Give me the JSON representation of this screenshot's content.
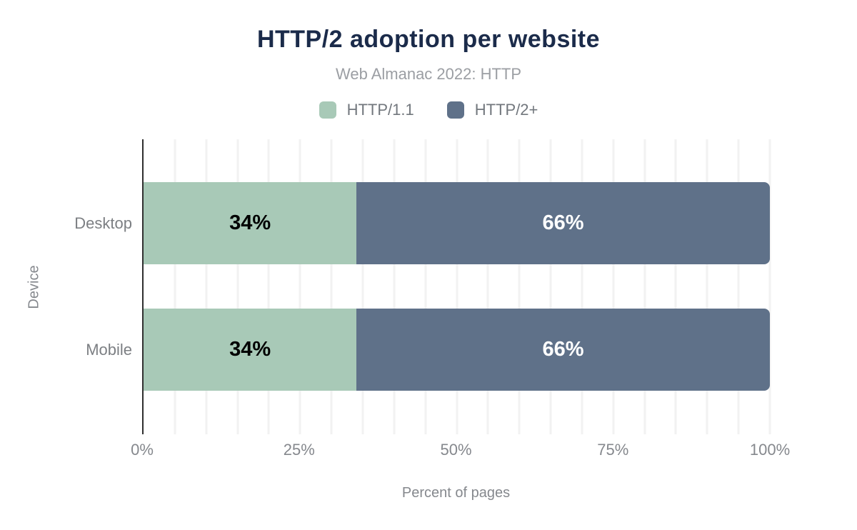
{
  "chart_data": {
    "type": "bar",
    "variant": "horizontal-stacked",
    "title": "HTTP/2 adoption per website",
    "subtitle": "Web Almanac 2022: HTTP",
    "categories": [
      "Desktop",
      "Mobile"
    ],
    "series": [
      {
        "name": "HTTP/1.1",
        "color": "#a8c9b7",
        "label_color": "#000000",
        "values": [
          34,
          34
        ],
        "labels": [
          "34%",
          "34%"
        ]
      },
      {
        "name": "HTTP/2+",
        "color": "#5f7189",
        "label_color": "#ffffff",
        "values": [
          66,
          66
        ],
        "labels": [
          "66%",
          "66%"
        ]
      }
    ],
    "xlabel": "Percent of pages",
    "ylabel": "Device",
    "x_ticks": [
      "0%",
      "25%",
      "50%",
      "75%",
      "100%"
    ],
    "x_tick_values": [
      0,
      25,
      50,
      75,
      100
    ],
    "xlim": [
      0,
      100
    ],
    "grid": "vertical",
    "grid_interval": 5,
    "legend_position": "top"
  },
  "colors": {
    "title": "#1b2b4a",
    "subtitle": "#9b9ea3",
    "legend_text": "#72777d",
    "category_text": "#7c7f83",
    "axis_text": "#85888d",
    "axis_line": "#2f2f2f",
    "gridline": "#f2f2f2",
    "background": "#ffffff"
  }
}
